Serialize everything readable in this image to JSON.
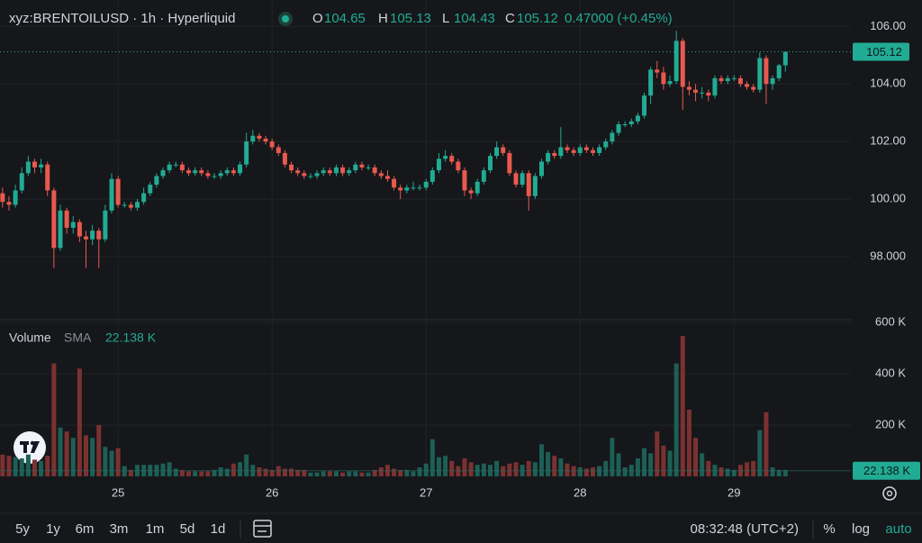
{
  "chart_data": {
    "type": "candlestick",
    "symbol": "xyz:BRENTOILUSD · 1h · Hyperliquid",
    "ohlc_labels": [
      "O",
      "H",
      "L",
      "C"
    ],
    "change": "0.47000 (+0.45%)",
    "volume_title": "Volume",
    "volume_sma_title": "SMA",
    "volume_sma": {
      "value": 22.138,
      "label": "22.138 K"
    },
    "up_color": "#22ab94",
    "down_color": "#e9594f",
    "up_volume_color": "#1d5f56",
    "down_volume_color": "#7c3131",
    "grid": true,
    "xlim": [
      -18.4,
      114.2
    ],
    "xticks": [
      {
        "value": 0,
        "label": "25"
      },
      {
        "value": 24,
        "label": "26"
      },
      {
        "value": 48,
        "label": "27"
      },
      {
        "value": 72,
        "label": "28"
      },
      {
        "value": 96,
        "label": "29"
      }
    ],
    "ylim": [
      95.9,
      106.92
    ],
    "yticks": [
      {
        "value": 106,
        "label": "106.00"
      },
      {
        "value": 104,
        "label": "104.00"
      },
      {
        "value": 102,
        "label": "102.00"
      },
      {
        "value": 100,
        "label": "100.00"
      },
      {
        "value": 98,
        "label": "98.000"
      }
    ],
    "volume_ylim": [
      0,
      600
    ],
    "volume_yticks": [
      {
        "value": 600,
        "label": "600 K"
      },
      {
        "value": 400,
        "label": "400 K"
      },
      {
        "value": 200,
        "label": "200 K"
      }
    ],
    "x": [
      -18,
      -17,
      -16,
      -15,
      -14,
      -13,
      -12,
      -11,
      -10,
      -9,
      -8,
      -7,
      -6,
      -5,
      -4,
      -3,
      -2,
      -1,
      0,
      1,
      2,
      3,
      4,
      5,
      6,
      7,
      8,
      9,
      10,
      11,
      12,
      13,
      14,
      15,
      16,
      17,
      18,
      19,
      20,
      21,
      22,
      23,
      24,
      25,
      26,
      27,
      28,
      29,
      30,
      31,
      32,
      33,
      34,
      35,
      36,
      37,
      38,
      39,
      40,
      41,
      42,
      43,
      44,
      45,
      46,
      47,
      48,
      49,
      50,
      51,
      52,
      53,
      54,
      55,
      56,
      57,
      58,
      59,
      60,
      61,
      62,
      63,
      64,
      65,
      66,
      67,
      68,
      69,
      70,
      71,
      72,
      73,
      74,
      75,
      76,
      77,
      78,
      79,
      80,
      81,
      82,
      83,
      84,
      85,
      86,
      87,
      88,
      89,
      90,
      91,
      92,
      93,
      94,
      95,
      96,
      97,
      98,
      99,
      100,
      101,
      102,
      103,
      104
    ],
    "ohlc": [
      [
        100.2,
        100.4,
        99.7,
        99.9
      ],
      [
        99.9,
        100.1,
        99.6,
        99.8
      ],
      [
        99.8,
        100.5,
        99.7,
        100.3
      ],
      [
        100.3,
        101.1,
        100.2,
        100.9
      ],
      [
        100.9,
        101.5,
        100.8,
        101.3
      ],
      [
        101.3,
        101.4,
        100.9,
        101.1
      ],
      [
        101.1,
        101.4,
        100.9,
        101.2
      ],
      [
        101.2,
        101.3,
        100.1,
        100.3
      ],
      [
        100.3,
        100.4,
        97.6,
        98.3
      ],
      [
        98.3,
        99.8,
        98.2,
        99.6
      ],
      [
        99.6,
        99.7,
        98.8,
        99.0
      ],
      [
        99.0,
        99.4,
        98.8,
        99.2
      ],
      [
        99.2,
        99.3,
        98.5,
        98.7
      ],
      [
        98.7,
        98.9,
        97.6,
        98.6
      ],
      [
        98.6,
        99.1,
        98.4,
        98.9
      ],
      [
        98.9,
        99.0,
        97.6,
        98.6
      ],
      [
        98.6,
        99.8,
        98.5,
        99.6
      ],
      [
        99.6,
        100.9,
        99.5,
        100.7
      ],
      [
        100.7,
        100.8,
        99.7,
        99.8
      ],
      [
        99.8,
        99.9,
        99.7,
        99.8
      ],
      [
        99.8,
        99.9,
        99.6,
        99.7
      ],
      [
        99.7,
        100.0,
        99.6,
        99.9
      ],
      [
        99.9,
        100.4,
        99.8,
        100.2
      ],
      [
        100.2,
        100.6,
        100.1,
        100.5
      ],
      [
        100.5,
        100.9,
        100.4,
        100.8
      ],
      [
        100.8,
        101.1,
        100.7,
        101.0
      ],
      [
        101.0,
        101.3,
        100.9,
        101.2
      ],
      [
        101.2,
        101.3,
        101.1,
        101.2
      ],
      [
        101.2,
        101.3,
        100.9,
        101.0
      ],
      [
        101.0,
        101.1,
        100.8,
        100.9
      ],
      [
        100.9,
        101.1,
        100.8,
        101.0
      ],
      [
        101.0,
        101.1,
        100.8,
        100.9
      ],
      [
        100.9,
        101.0,
        100.7,
        100.8
      ],
      [
        100.8,
        100.9,
        100.7,
        100.8
      ],
      [
        100.8,
        101.0,
        100.7,
        100.9
      ],
      [
        100.9,
        101.1,
        100.8,
        101.0
      ],
      [
        101.0,
        101.1,
        100.8,
        100.9
      ],
      [
        100.9,
        101.3,
        100.8,
        101.2
      ],
      [
        101.2,
        102.3,
        101.1,
        102.0
      ],
      [
        102.0,
        102.4,
        101.9,
        102.2
      ],
      [
        102.2,
        102.3,
        102.0,
        102.1
      ],
      [
        102.1,
        102.2,
        101.9,
        102.0
      ],
      [
        102.0,
        102.1,
        101.7,
        101.8
      ],
      [
        101.8,
        101.9,
        101.5,
        101.6
      ],
      [
        101.6,
        101.7,
        101.1,
        101.2
      ],
      [
        101.2,
        101.3,
        100.9,
        101.0
      ],
      [
        101.0,
        101.1,
        100.8,
        100.9
      ],
      [
        100.9,
        101.0,
        100.7,
        100.8
      ],
      [
        100.8,
        100.9,
        100.7,
        100.8
      ],
      [
        100.8,
        101.0,
        100.7,
        100.9
      ],
      [
        100.9,
        101.1,
        100.8,
        101.0
      ],
      [
        101.0,
        101.1,
        100.8,
        100.9
      ],
      [
        100.9,
        101.2,
        100.8,
        101.1
      ],
      [
        101.1,
        101.2,
        100.8,
        100.9
      ],
      [
        100.9,
        101.1,
        100.8,
        101.0
      ],
      [
        101.0,
        101.3,
        100.9,
        101.2
      ],
      [
        101.2,
        101.3,
        101.0,
        101.1
      ],
      [
        101.1,
        101.2,
        101.0,
        101.1
      ],
      [
        101.1,
        101.2,
        100.8,
        100.9
      ],
      [
        100.9,
        101.0,
        100.7,
        100.8
      ],
      [
        100.8,
        101.0,
        100.6,
        100.7
      ],
      [
        100.7,
        100.8,
        100.3,
        100.4
      ],
      [
        100.4,
        100.5,
        100.0,
        100.3
      ],
      [
        100.3,
        100.5,
        100.2,
        100.4
      ],
      [
        100.4,
        100.6,
        100.3,
        100.4
      ],
      [
        100.4,
        100.5,
        100.3,
        100.4
      ],
      [
        100.4,
        100.7,
        100.3,
        100.6
      ],
      [
        100.6,
        101.1,
        100.5,
        101.0
      ],
      [
        101.0,
        101.6,
        100.9,
        101.4
      ],
      [
        101.4,
        101.7,
        101.3,
        101.5
      ],
      [
        101.5,
        101.6,
        101.2,
        101.3
      ],
      [
        101.3,
        101.4,
        100.9,
        101.0
      ],
      [
        101.0,
        101.1,
        100.1,
        100.3
      ],
      [
        100.3,
        100.4,
        100.0,
        100.2
      ],
      [
        100.2,
        100.7,
        100.1,
        100.6
      ],
      [
        100.6,
        101.1,
        100.5,
        101.0
      ],
      [
        101.0,
        101.6,
        100.9,
        101.5
      ],
      [
        101.5,
        102.0,
        101.4,
        101.8
      ],
      [
        101.8,
        101.9,
        101.5,
        101.6
      ],
      [
        101.6,
        101.7,
        100.8,
        100.9
      ],
      [
        100.9,
        101.0,
        100.4,
        100.5
      ],
      [
        100.5,
        101.0,
        100.4,
        100.9
      ],
      [
        100.9,
        101.0,
        99.6,
        100.1
      ],
      [
        100.1,
        100.9,
        100.0,
        100.8
      ],
      [
        100.8,
        101.4,
        100.7,
        101.3
      ],
      [
        101.3,
        101.7,
        101.2,
        101.6
      ],
      [
        101.6,
        101.7,
        101.4,
        101.5
      ],
      [
        101.5,
        102.5,
        101.4,
        101.8
      ],
      [
        101.8,
        101.9,
        101.6,
        101.7
      ],
      [
        101.7,
        101.8,
        101.5,
        101.6
      ],
      [
        101.6,
        101.9,
        101.5,
        101.8
      ],
      [
        101.8,
        101.9,
        101.6,
        101.7
      ],
      [
        101.7,
        101.8,
        101.5,
        101.6
      ],
      [
        101.6,
        101.9,
        101.5,
        101.8
      ],
      [
        101.8,
        102.1,
        101.7,
        102.0
      ],
      [
        102.0,
        102.4,
        101.9,
        102.3
      ],
      [
        102.3,
        102.7,
        102.2,
        102.6
      ],
      [
        102.6,
        102.7,
        102.5,
        102.6
      ],
      [
        102.6,
        102.8,
        102.5,
        102.7
      ],
      [
        102.7,
        103.0,
        102.6,
        102.9
      ],
      [
        102.9,
        103.7,
        102.8,
        103.6
      ],
      [
        103.6,
        104.6,
        103.3,
        104.5
      ],
      [
        104.5,
        104.8,
        104.2,
        104.4
      ],
      [
        104.4,
        104.6,
        103.8,
        104.0
      ],
      [
        104.0,
        104.3,
        103.9,
        104.1
      ],
      [
        104.1,
        105.85,
        104.0,
        105.5
      ],
      [
        105.5,
        105.6,
        103.1,
        103.9
      ],
      [
        103.9,
        104.1,
        103.6,
        103.8
      ],
      [
        103.8,
        104.0,
        103.4,
        103.7
      ],
      [
        103.7,
        103.9,
        103.5,
        103.7
      ],
      [
        103.7,
        103.8,
        103.4,
        103.6
      ],
      [
        103.6,
        104.3,
        103.5,
        104.2
      ],
      [
        104.2,
        104.3,
        104.0,
        104.1
      ],
      [
        104.1,
        104.3,
        104.0,
        104.2
      ],
      [
        104.2,
        104.3,
        104.1,
        104.2
      ],
      [
        104.2,
        104.3,
        103.9,
        104.0
      ],
      [
        104.0,
        104.1,
        103.8,
        103.9
      ],
      [
        103.9,
        104.0,
        103.7,
        103.8
      ],
      [
        103.8,
        105.1,
        103.7,
        104.9
      ],
      [
        104.9,
        105.0,
        103.3,
        104.0
      ],
      [
        104.0,
        104.3,
        103.8,
        104.2
      ],
      [
        104.2,
        104.7,
        104.1,
        104.65
      ],
      [
        104.65,
        105.13,
        104.43,
        105.12
      ]
    ],
    "volume": [
      85,
      80,
      75,
      70,
      85,
      65,
      60,
      80,
      440,
      190,
      175,
      150,
      420,
      160,
      150,
      200,
      115,
      100,
      110,
      40,
      25,
      45,
      45,
      45,
      45,
      50,
      55,
      30,
      25,
      20,
      20,
      20,
      20,
      25,
      35,
      30,
      50,
      55,
      85,
      45,
      35,
      30,
      25,
      40,
      30,
      30,
      25,
      25,
      15,
      15,
      20,
      20,
      20,
      15,
      20,
      20,
      15,
      15,
      25,
      35,
      45,
      30,
      25,
      25,
      20,
      35,
      50,
      145,
      75,
      80,
      60,
      40,
      70,
      55,
      45,
      50,
      45,
      60,
      40,
      50,
      55,
      45,
      60,
      55,
      125,
      95,
      80,
      70,
      50,
      40,
      35,
      30,
      35,
      40,
      60,
      150,
      90,
      35,
      45,
      70,
      110,
      90,
      175,
      120,
      100,
      440,
      547,
      260,
      150,
      90,
      60,
      45,
      35,
      30,
      25,
      45,
      55,
      60,
      180,
      250,
      35,
      25,
      25
    ]
  },
  "toolbar": {
    "ranges": [
      "5y",
      "1y",
      "6m",
      "3m",
      "1m",
      "5d",
      "1d"
    ],
    "time": "08:32:48 (UTC+2)",
    "percent": "%",
    "log": "log",
    "auto": "auto"
  }
}
